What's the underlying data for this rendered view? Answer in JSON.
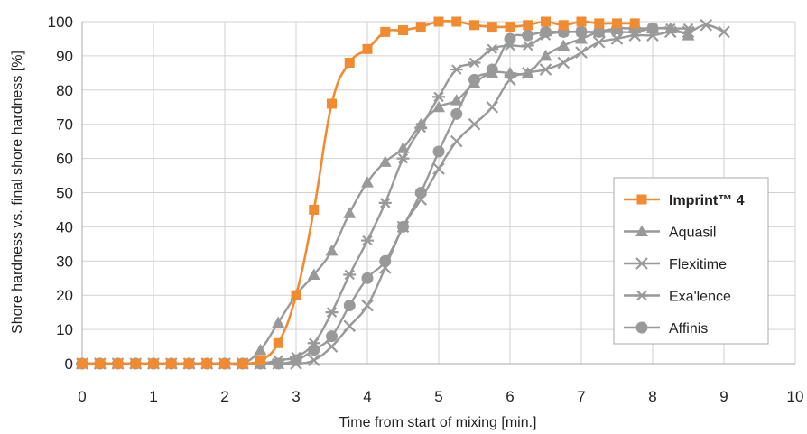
{
  "chart_data": {
    "type": "line",
    "xlabel": "Time from start of mixing [min.]",
    "ylabel": "Shore hardness vs. final shore hardness [%]",
    "xlim": [
      0,
      10
    ],
    "ylim": [
      0,
      100
    ],
    "xticks": [
      0,
      1,
      2,
      3,
      4,
      5,
      6,
      7,
      8,
      9,
      10
    ],
    "yticks": [
      0,
      10,
      20,
      30,
      40,
      50,
      60,
      70,
      80,
      90,
      100
    ],
    "grid": true,
    "legend_position": "right",
    "series": [
      {
        "name": "Imprint™ 4",
        "highlight": true,
        "color": "#f28a30",
        "marker": "square",
        "x": [
          0,
          0.25,
          0.5,
          0.75,
          1.0,
          1.25,
          1.5,
          1.75,
          2.0,
          2.25,
          2.5,
          2.75,
          3.0,
          3.25,
          3.5,
          3.75,
          4.0,
          4.25,
          4.5,
          4.75,
          5.0,
          5.25,
          5.5,
          5.75,
          6.0,
          6.25,
          6.5,
          6.75,
          7.0,
          7.25,
          7.5,
          7.75
        ],
        "y": [
          0,
          0,
          0,
          0,
          0,
          0,
          0,
          0,
          0,
          0,
          1,
          6,
          20,
          45,
          76,
          88,
          92,
          97,
          97.5,
          98.5,
          100,
          100,
          99,
          98.5,
          98.5,
          99,
          100,
          99,
          100,
          99.5,
          99.5,
          99.5
        ]
      },
      {
        "name": "Aquasil",
        "color": "#999999",
        "marker": "triangle",
        "x": [
          0,
          0.25,
          0.5,
          0.75,
          1.0,
          1.25,
          1.5,
          1.75,
          2.0,
          2.25,
          2.5,
          2.75,
          3.0,
          3.25,
          3.5,
          3.75,
          4.0,
          4.25,
          4.5,
          4.75,
          5.0,
          5.25,
          5.5,
          5.75,
          6.0,
          6.25,
          6.5,
          6.75,
          7.0,
          7.25,
          7.5,
          7.75,
          8.0,
          8.25,
          8.5
        ],
        "y": [
          0,
          0,
          0,
          0,
          0,
          0,
          0,
          0,
          0,
          0,
          4,
          12,
          20,
          26,
          33,
          44,
          53,
          59,
          63,
          70,
          75,
          77,
          82,
          85,
          85,
          85,
          90,
          93,
          95,
          97,
          98,
          98,
          98,
          98,
          96
        ]
      },
      {
        "name": "Flexitime",
        "color": "#999999",
        "marker": "x",
        "x": [
          0,
          0.25,
          0.5,
          0.75,
          1.0,
          1.25,
          1.5,
          1.75,
          2.0,
          2.25,
          2.5,
          2.75,
          3.0,
          3.25,
          3.5,
          3.75,
          4.0,
          4.25,
          4.5,
          4.75,
          5.0,
          5.25,
          5.5,
          5.75,
          6.0,
          6.25,
          6.5,
          6.75,
          7.0,
          7.25,
          7.5,
          7.75,
          8.0,
          8.25,
          8.5,
          8.75,
          9.0
        ],
        "y": [
          0,
          0,
          0,
          0,
          0,
          0,
          0,
          0,
          0,
          0,
          0,
          0,
          0,
          1,
          5,
          11,
          17,
          28,
          40,
          48,
          57,
          65,
          70,
          75,
          83,
          85,
          86,
          88,
          91,
          94,
          95,
          96,
          96,
          97,
          97,
          99,
          97
        ]
      },
      {
        "name": "Exa'lence",
        "color": "#999999",
        "marker": "asterisk",
        "x": [
          0,
          0.25,
          0.5,
          0.75,
          1.0,
          1.25,
          1.5,
          1.75,
          2.0,
          2.25,
          2.5,
          2.75,
          3.0,
          3.25,
          3.5,
          3.75,
          4.0,
          4.25,
          4.5,
          4.75,
          5.0,
          5.25,
          5.5,
          5.75,
          6.0,
          6.25,
          6.5,
          6.75,
          7.0,
          7.25,
          7.5,
          7.75,
          8.0,
          8.25,
          8.5
        ],
        "y": [
          0,
          0,
          0,
          0,
          0,
          0,
          0,
          0,
          0,
          0,
          0,
          1,
          2,
          6,
          15,
          26,
          36,
          47,
          60,
          69,
          78,
          86,
          88,
          92,
          93,
          93,
          96,
          97,
          97,
          97,
          97,
          97,
          98,
          98,
          98
        ]
      },
      {
        "name": "Affinis",
        "color": "#999999",
        "marker": "circle",
        "x": [
          0,
          0.25,
          0.5,
          0.75,
          1.0,
          1.25,
          1.5,
          1.75,
          2.0,
          2.25,
          2.5,
          2.75,
          3.0,
          3.25,
          3.5,
          3.75,
          4.0,
          4.25,
          4.5,
          4.75,
          5.0,
          5.25,
          5.5,
          5.75,
          6.0,
          6.25,
          6.5,
          6.75,
          7.0,
          7.25,
          7.5,
          7.75,
          8.0
        ],
        "y": [
          0,
          0,
          0,
          0,
          0,
          0,
          0,
          0,
          0,
          0,
          0,
          0,
          1,
          4,
          8,
          17,
          25,
          30,
          40,
          50,
          62,
          73,
          83,
          86,
          95,
          96,
          97,
          97,
          97,
          97,
          98,
          98,
          98
        ]
      }
    ]
  }
}
